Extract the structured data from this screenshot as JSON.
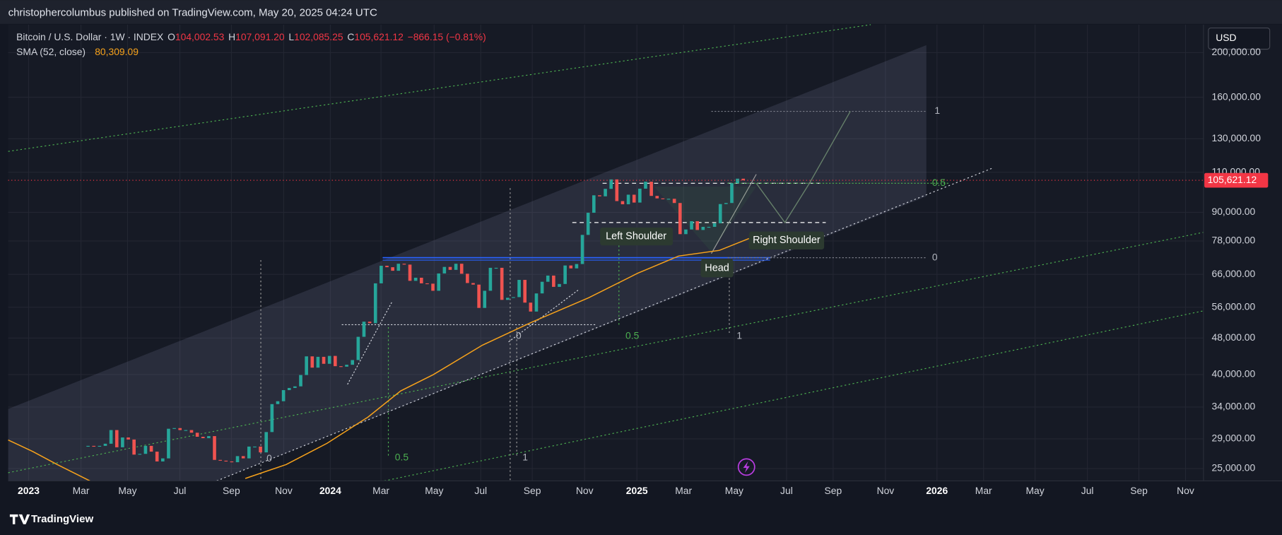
{
  "header": {
    "text": "christophercolumbus published on TradingView.com, May 20, 2025 04:24 UTC"
  },
  "legend": {
    "symbol": "Bitcoin / U.S. Dollar · 1W · INDEX",
    "ohlc": [
      {
        "key": "O",
        "value": "104,002.53"
      },
      {
        "key": "H",
        "value": "107,091.20"
      },
      {
        "key": "L",
        "value": "102,085.25"
      },
      {
        "key": "C",
        "value": "105,621.12"
      }
    ],
    "change": "−866.15 (−0.81%)",
    "sma_name": "SMA (52, close)",
    "sma_value": "80,309.09"
  },
  "currency": "USD",
  "price_axis": {
    "ylim": [
      23500,
      230000
    ],
    "ticks": [
      {
        "value": 200000,
        "label": "200,000.00"
      },
      {
        "value": 160000,
        "label": "160,000.00"
      },
      {
        "value": 130000,
        "label": "130,000.00"
      },
      {
        "value": 110000,
        "label": "110,000.00"
      },
      {
        "value": 90000,
        "label": "90,000.00"
      },
      {
        "value": 78000,
        "label": "78,000.00"
      },
      {
        "value": 66000,
        "label": "66,000.00"
      },
      {
        "value": 56000,
        "label": "56,000.00"
      },
      {
        "value": 48000,
        "label": "48,000.00"
      },
      {
        "value": 40000,
        "label": "40,000.00"
      },
      {
        "value": 34000,
        "label": "34,000.00"
      },
      {
        "value": 29000,
        "label": "29,000.00"
      },
      {
        "value": 25000,
        "label": "25,000.00"
      }
    ],
    "current": {
      "value": 105621.12,
      "label": "105,621.12"
    }
  },
  "time_axis": {
    "labels": [
      "2023",
      "Mar",
      "May",
      "Jul",
      "Sep",
      "Nov",
      "2024",
      "Mar",
      "May",
      "Jul",
      "Sep",
      "Nov",
      "2025",
      "Mar",
      "May",
      "Jul",
      "Sep",
      "Nov",
      "2026",
      "Mar",
      "May",
      "Jul",
      "Sep",
      "Nov"
    ]
  },
  "candles": {
    "closes": [
      28000,
      27900,
      28000,
      28300,
      30300,
      27800,
      29200,
      28900,
      26800,
      26900,
      28000,
      27200,
      25900,
      26300,
      30500,
      30600,
      30300,
      30300,
      29900,
      29300,
      29100,
      29400,
      26100,
      26000,
      25900,
      25800,
      26600,
      26300,
      27900,
      27900,
      27100,
      30000,
      34500,
      35000,
      37000,
      37400,
      37700,
      39900,
      43800,
      41400,
      43700,
      42200,
      43900,
      41700,
      41600,
      42000,
      43000,
      48300,
      52100,
      51700,
      63100,
      68900,
      68400,
      67200,
      69600,
      69300,
      63900,
      64900,
      63100,
      63000,
      60800,
      66300,
      68500,
      67500,
      69600,
      66200,
      63200,
      62700,
      55800,
      60800,
      68200,
      68200,
      58100,
      58700,
      58900,
      64200,
      57300,
      54800,
      60000,
      63600,
      65600,
      62000,
      62900,
      69000,
      68000,
      69500,
      80400,
      89800,
      98000,
      97500,
      101200,
      106100,
      95200,
      93700,
      98300,
      94500,
      101300,
      104900,
      97700,
      96500,
      96100,
      96300,
      94300,
      80700,
      82600,
      86100,
      82400,
      83700,
      83700,
      85200,
      93800,
      94300,
      104100,
      106487,
      105621.12
    ]
  },
  "annotations": {
    "left_shoulder": "Left Shoulder",
    "head": "Head",
    "right_shoulder": "Right Shoulder",
    "fib_top": [
      "1",
      "0.5",
      "0"
    ],
    "fib_small": [
      "0",
      "0.5",
      "1",
      "0",
      "0.5",
      "1"
    ]
  },
  "footer": {
    "brand": "TradingView"
  }
}
